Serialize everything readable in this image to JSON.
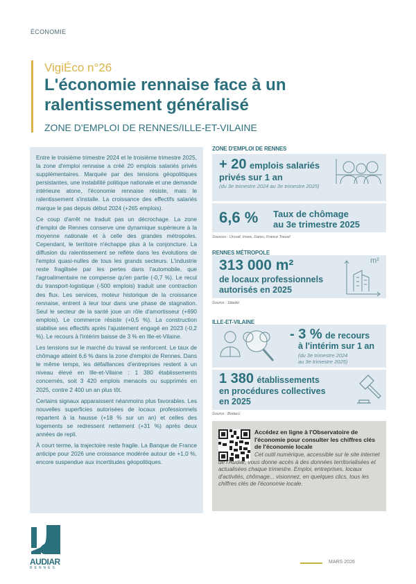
{
  "header": {
    "section": "ÉCONOMIE",
    "kicker": "VigiÉco n°26",
    "title": "L'économie rennaise face à un ralentissement généralisé",
    "subtitle": "ZONE D'EMPLOI DE RENNES/ILLE-ET-VILAINE"
  },
  "body": {
    "paragraphs": [
      "Entre le troisième trimestre 2024 et le troisième trimestre 2025, la zone d'emploi rennaise a créé 20 emplois salariés privés supplémentaires. Marquée par des tensions géopolitiques persistantes, une instabilité politique nationale et une demande intérieure atone, l'économie rennaise résiste, mais le ralentissement s'installe. La croissance des effectifs salariés marque le pas depuis début 2024 (+265 emplois).",
      "Ce coup d'arrêt ne traduit pas un décrochage. La zone d'emploi de Rennes conserve une dynamique supérieure à la moyenne nationale et à celle des grandes métropoles. Cependant, le territoire n'échappe plus à la conjoncture. La diffusion du ralentissement se reflète dans les évolutions de l'emploi quasi-nulles de tous les grands secteurs. L'industrie reste fragilisée par les pertes dans l'automobile, que l'agroalimentaire ne compense qu'en partie (-0,7 %). Le recul du transport-logistique (-500 emplois) traduit une contraction des flux. Les services, moteur historique de la croissance rennaise, entrent à leur tour dans une phase de stagnation. Seul le secteur de la santé joue un rôle d'amortisseur (+690 emplois). Le commerce résiste (+0,5 %). La construction stabilise ses effectifs après l'ajustement engagé en 2023 (-0,2 %). Le recours à l'intérim baisse de 3 % en Ille-et-Vilaine.",
      "Les tensions sur le marché du travail se renforcent. Le taux de chômage atteint 6,6 % dans la zone d'emploi de Rennes. Dans le même temps, les défaillances d'entreprises restent à un niveau élevé en Ille-et-Vilaine : 1 380 établissements concernés, soit 3 420 emplois menacés ou supprimés en 2025, contre 2 400 un an plus tôt.",
      "Certains signaux apparaissent néanmoins plus favorables. Les nouvelles superficies autorisées de locaux professionnels repartent à la hausse (+18 % sur un an) et celles des logements se redressent nettement (+31 %) après deux années de repli.",
      "À court terme, la trajectoire reste fragile. La Banque de France anticipe pour 2026 une croissance modérée autour de +1,0 %, encore suspendue aux incertitudes géopolitiques."
    ]
  },
  "stats": {
    "zone_label": "ZONE D'EMPLOI DE RENNES",
    "jobs": {
      "value": "+ 20",
      "text1": "emplois salariés",
      "text2": "privés sur 1 an",
      "note": "(du 3e trimestre 2024 au 3e trimestre 2025)",
      "icon": "people-icon"
    },
    "unemployment": {
      "value": "6,6 %",
      "text1": "Taux de chômage",
      "text2": "au 3e trimestre 2025"
    },
    "source1": "Sources : Urssaf, Insee, Dares, France Travail",
    "metro_label": "RENNES MÉTROPOLE",
    "surface": {
      "value": "313 000 m²",
      "text1": "de locaux professionnels",
      "text2": "autorisés en 2025",
      "icon_label": "m²",
      "icon": "building-icon"
    },
    "source2": "Source : Sitadel",
    "ille_label": "ILLE-ET-VILAINE",
    "interim": {
      "value": "- 3 %",
      "text1": "de recours",
      "text2": "à l'intérim sur 1 an",
      "note1": "(du 3e trimestre 2024",
      "note2": "au 3e trimestre 2025)",
      "icon": "magnifier-people-icon"
    },
    "failures": {
      "value": "1 380",
      "text1": "établissements",
      "text2": "en procédures collectives",
      "text3": "en 2025",
      "icon": "gavel-icon"
    },
    "source3": "Source : Bodacc"
  },
  "observatory": {
    "title": "Accédez en ligne à l'Observatoire de l'économie pour consulter les chiffres clés de l'économie locale",
    "text": "Cet outil numérique, accessible sur le site internet de l'Audiar, vous donne accès à des données territorialisées et actualisées chaque trimestre. Emploi, entreprises, locaux d'activités, chômage... visionnez, en quelques clics, tous les chiffres clés de l'économie locale."
  },
  "footer": {
    "logo": "AUDIAR RENNES",
    "logo_word": "AUDIAR",
    "logo_sub": "RENNES",
    "date": "MARS 2026"
  },
  "colors": {
    "teal": "#2b6e7c",
    "gold": "#d9b44a",
    "panel": "#dfe9ef",
    "grey_box": "#d9dad5"
  }
}
